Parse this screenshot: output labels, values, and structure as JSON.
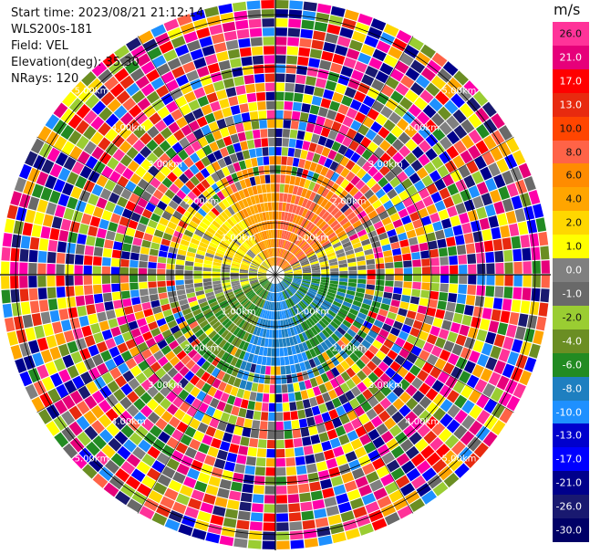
{
  "header": {
    "start_time": "Start time: 2023/08/21 21:12:14",
    "station": "WLS200s-181",
    "field": "Field: VEL",
    "elevation": "Elevation(deg): 35.30",
    "nrays": "NRays: 120"
  },
  "colorbar": {
    "unit": "m/s",
    "ticks": [
      "26.0",
      "21.0",
      "17.0",
      "13.0",
      "10.0",
      "8.0",
      "6.0",
      "4.0",
      "2.0",
      "1.0",
      "0.0",
      "-1.0",
      "-2.0",
      "-4.0",
      "-6.0",
      "-8.0",
      "-10.0",
      "-13.0",
      "-17.0",
      "-21.0",
      "-26.0",
      "-30.0"
    ],
    "colors": [
      "#ff3399",
      "#e6007a",
      "#ff0000",
      "#e82a0f",
      "#ff4500",
      "#ff6347",
      "#ff8c00",
      "#ffa500",
      "#ffd700",
      "#ffff00",
      "#808080",
      "#696969",
      "#9acd32",
      "#6b8e23",
      "#228b22",
      "#1e7fc0",
      "#1e90ff",
      "#0000cd",
      "#0000ff",
      "#00008b",
      "#191970",
      "#000066"
    ]
  },
  "chart_data": {
    "type": "ppi",
    "title": "",
    "field": "VEL",
    "units": "m/s",
    "range_rings_km": [
      1.0,
      2.0,
      3.0,
      4.0,
      5.0
    ],
    "ring_labels": [
      "1.00km",
      "2.00km",
      "3.00km",
      "4.00km",
      "5.00km"
    ],
    "nrays": 120,
    "range_gates": 30,
    "clean_range_km": 2.1,
    "velocity_sectors": [
      {
        "azimuth_from": 0,
        "azimuth_to": 60,
        "velocity": 8.0,
        "label": "north-northeast"
      },
      {
        "azimuth_from": 60,
        "azimuth_to": 90,
        "velocity": 1.0,
        "label": "east"
      },
      {
        "azimuth_from": 90,
        "azimuth_to": 160,
        "velocity": -6.0,
        "label": "southeast"
      },
      {
        "azimuth_from": 160,
        "azimuth_to": 200,
        "velocity": -8.0,
        "label": "south"
      },
      {
        "azimuth_from": 200,
        "azimuth_to": 250,
        "velocity": -4.0,
        "label": "southwest"
      },
      {
        "azimuth_from": 250,
        "azimuth_to": 280,
        "velocity": 0.0,
        "label": "west"
      },
      {
        "azimuth_from": 280,
        "azimuth_to": 330,
        "velocity": 2.0,
        "label": "northwest"
      },
      {
        "azimuth_from": 330,
        "azimuth_to": 360,
        "velocity": 6.0,
        "label": "north-northwest"
      }
    ]
  }
}
